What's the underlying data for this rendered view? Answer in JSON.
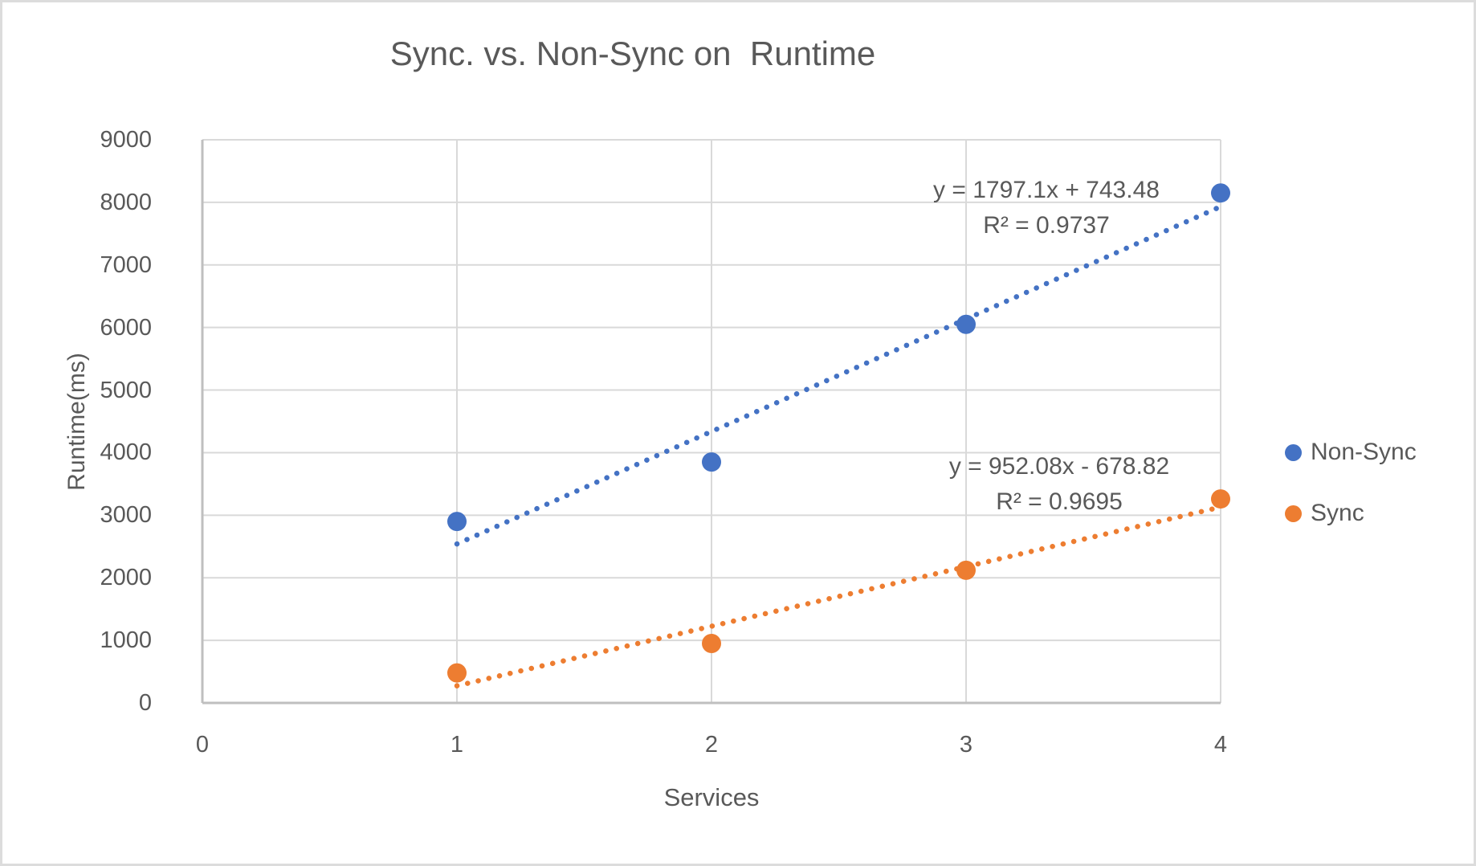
{
  "chart_data": {
    "type": "scatter",
    "title": "Sync. vs. Non-Sync on  Runtime",
    "xlabel": "Services",
    "ylabel": "Runtime(ms)",
    "xlim": [
      0,
      4
    ],
    "ylim": [
      0,
      9000
    ],
    "x_ticks": [
      "0",
      "1",
      "2",
      "3",
      "4"
    ],
    "y_ticks": [
      "0",
      "1000",
      "2000",
      "3000",
      "4000",
      "5000",
      "6000",
      "7000",
      "8000",
      "9000"
    ],
    "grid": true,
    "legend_position": "right-middle",
    "series": [
      {
        "name": "Non-Sync",
        "color": "#4472C4",
        "x": [
          1,
          2,
          3,
          4
        ],
        "values": [
          2900,
          3850,
          6050,
          8150
        ],
        "trendline": {
          "type": "linear",
          "slope": 1797.1,
          "intercept": 743.48,
          "equation_label": "y = 1797.1x + 743.48",
          "r2_label": "R² = 0.9737",
          "x_start": 1,
          "x_end": 4
        }
      },
      {
        "name": "Sync",
        "color": "#ED7D31",
        "x": [
          1,
          2,
          3,
          4
        ],
        "values": [
          480,
          950,
          2120,
          3260
        ],
        "trendline": {
          "type": "linear",
          "slope": 952.08,
          "intercept": -678.82,
          "equation_label": "y = 952.08x - 678.82",
          "r2_label": "R² = 0.9695",
          "x_start": 1,
          "x_end": 4
        }
      }
    ],
    "colors": {
      "text": "#595959",
      "gridline": "#D9D9D9",
      "axis_line": "#BFBFBF",
      "background": "#FFFFFF",
      "frame_border": "#DCDCDC"
    }
  }
}
